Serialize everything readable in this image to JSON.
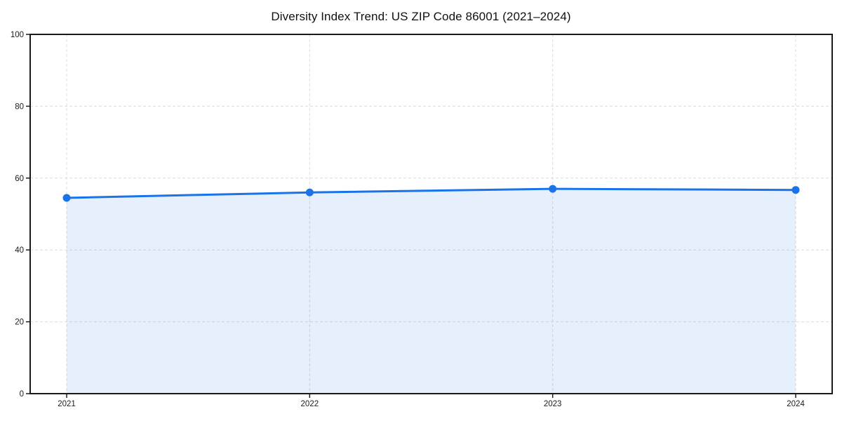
{
  "chart_data": {
    "type": "area",
    "title": "Diversity Index Trend: US ZIP Code 86001 (2021–2024)",
    "categories": [
      "2021",
      "2022",
      "2023",
      "2024"
    ],
    "series": [
      {
        "name": "Diversity Index",
        "values": [
          54.5,
          56.0,
          57.0,
          56.7
        ]
      }
    ],
    "xlabel": "",
    "ylabel": "",
    "ylim": [
      0,
      100
    ],
    "yticks": [
      0,
      20,
      40,
      60,
      80,
      100
    ],
    "ytick_labels": [
      "0",
      "20",
      "40",
      "60",
      "80",
      "100"
    ],
    "grid": "both-dashed",
    "legend": "none",
    "marker": "circle",
    "colors": {
      "line": "#1a73e8",
      "fill": "rgba(26,115,232,0.11)",
      "grid": "#dcdcdc",
      "axis": "#1a1a1a",
      "text": "#1a1a1a",
      "background": "#ffffff"
    }
  }
}
